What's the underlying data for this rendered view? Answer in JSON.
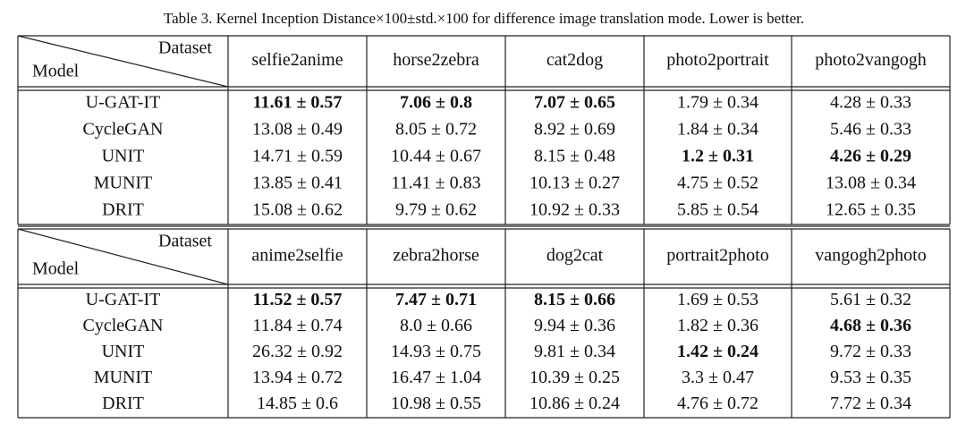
{
  "caption": "Table 3. Kernel Inception Distance×100±std.×100 for difference image translation mode. Lower is better.",
  "blocks": [
    {
      "corner_top": "Dataset",
      "corner_bottom": "Model",
      "columns": [
        "selfie2anime",
        "horse2zebra",
        "cat2dog",
        "photo2portrait",
        "photo2vangogh"
      ],
      "rows": [
        {
          "model": "U-GAT-IT",
          "cells": [
            {
              "text": "11.61 ± 0.57",
              "bold": true
            },
            {
              "text": "7.06 ± 0.8",
              "bold": true
            },
            {
              "text": "7.07 ± 0.65",
              "bold": true
            },
            {
              "text": "1.79 ± 0.34",
              "bold": false
            },
            {
              "text": "4.28 ± 0.33",
              "bold": false
            }
          ]
        },
        {
          "model": "CycleGAN",
          "cells": [
            {
              "text": "13.08 ± 0.49",
              "bold": false
            },
            {
              "text": "8.05 ± 0.72",
              "bold": false
            },
            {
              "text": "8.92 ± 0.69",
              "bold": false
            },
            {
              "text": "1.84 ± 0.34",
              "bold": false
            },
            {
              "text": "5.46 ± 0.33",
              "bold": false
            }
          ]
        },
        {
          "model": "UNIT",
          "cells": [
            {
              "text": "14.71 ± 0.59",
              "bold": false
            },
            {
              "text": "10.44 ± 0.67",
              "bold": false
            },
            {
              "text": "8.15 ± 0.48",
              "bold": false
            },
            {
              "text": "1.2 ± 0.31",
              "bold": true
            },
            {
              "text": "4.26 ± 0.29",
              "bold": true
            }
          ]
        },
        {
          "model": "MUNIT",
          "cells": [
            {
              "text": "13.85 ± 0.41",
              "bold": false
            },
            {
              "text": "11.41 ± 0.83",
              "bold": false
            },
            {
              "text": "10.13 ± 0.27",
              "bold": false
            },
            {
              "text": "4.75 ± 0.52",
              "bold": false
            },
            {
              "text": "13.08 ± 0.34",
              "bold": false
            }
          ]
        },
        {
          "model": "DRIT",
          "cells": [
            {
              "text": "15.08 ± 0.62",
              "bold": false
            },
            {
              "text": "9.79 ± 0.62",
              "bold": false
            },
            {
              "text": "10.92 ± 0.33",
              "bold": false
            },
            {
              "text": "5.85 ± 0.54",
              "bold": false
            },
            {
              "text": "12.65 ± 0.35",
              "bold": false
            }
          ]
        }
      ]
    },
    {
      "corner_top": "Dataset",
      "corner_bottom": "Model",
      "columns": [
        "anime2selfie",
        "zebra2horse",
        "dog2cat",
        "portrait2photo",
        "vangogh2photo"
      ],
      "rows": [
        {
          "model": "U-GAT-IT",
          "cells": [
            {
              "text": "11.52 ± 0.57",
              "bold": true
            },
            {
              "text": "7.47 ± 0.71",
              "bold": true
            },
            {
              "text": "8.15 ± 0.66",
              "bold": true
            },
            {
              "text": "1.69 ± 0.53",
              "bold": false
            },
            {
              "text": "5.61 ± 0.32",
              "bold": false
            }
          ]
        },
        {
          "model": "CycleGAN",
          "cells": [
            {
              "text": "11.84 ± 0.74",
              "bold": false
            },
            {
              "text": "8.0 ± 0.66",
              "bold": false
            },
            {
              "text": "9.94 ± 0.36",
              "bold": false
            },
            {
              "text": "1.82 ± 0.36",
              "bold": false
            },
            {
              "text": "4.68 ± 0.36",
              "bold": true
            }
          ]
        },
        {
          "model": "UNIT",
          "cells": [
            {
              "text": "26.32 ± 0.92",
              "bold": false
            },
            {
              "text": "14.93 ± 0.75",
              "bold": false
            },
            {
              "text": "9.81 ± 0.34",
              "bold": false
            },
            {
              "text": "1.42 ± 0.24",
              "bold": true
            },
            {
              "text": "9.72 ± 0.33",
              "bold": false
            }
          ]
        },
        {
          "model": "MUNIT",
          "cells": [
            {
              "text": "13.94 ± 0.72",
              "bold": false
            },
            {
              "text": "16.47 ± 1.04",
              "bold": false
            },
            {
              "text": "10.39 ± 0.25",
              "bold": false
            },
            {
              "text": "3.3 ± 0.47",
              "bold": false
            },
            {
              "text": "9.53 ± 0.35",
              "bold": false
            }
          ]
        },
        {
          "model": "DRIT",
          "cells": [
            {
              "text": "14.85 ± 0.6",
              "bold": false
            },
            {
              "text": "10.98 ± 0.55",
              "bold": false
            },
            {
              "text": "10.86 ± 0.24",
              "bold": false
            },
            {
              "text": "4.76 ± 0.72",
              "bold": false
            },
            {
              "text": "7.72 ± 0.34",
              "bold": false
            }
          ]
        }
      ]
    }
  ]
}
